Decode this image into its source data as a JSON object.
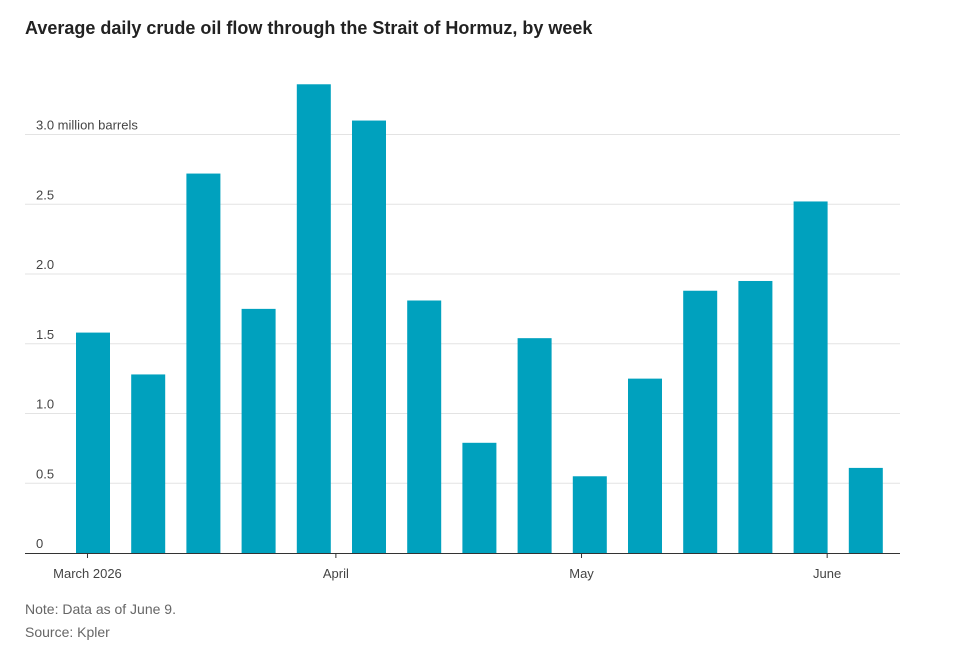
{
  "chart_data": {
    "type": "bar",
    "title": "Average daily crude oil flow through the Strait of Hormuz, by week",
    "unit_label": "million barrels",
    "ylim": [
      0,
      3.4
    ],
    "y_ticks": [
      {
        "value": 0,
        "label": "0"
      },
      {
        "value": 0.5,
        "label": "0.5"
      },
      {
        "value": 1.0,
        "label": "1.0"
      },
      {
        "value": 1.5,
        "label": "1.5"
      },
      {
        "value": 2.0,
        "label": "2.0"
      },
      {
        "value": 2.5,
        "label": "2.5"
      },
      {
        "value": 3.0,
        "label": "3.0 million barrels"
      }
    ],
    "grid": true,
    "values": [
      1.58,
      1.28,
      2.72,
      1.75,
      3.36,
      3.1,
      1.81,
      0.79,
      1.54,
      0.55,
      1.25,
      1.88,
      1.95,
      2.52,
      0.61
    ],
    "x_ticks": [
      {
        "label": "March 2026",
        "bar_position": -0.1
      },
      {
        "label": "April",
        "bar_position": 4.4
      },
      {
        "label": "May",
        "bar_position": 8.85
      },
      {
        "label": "June",
        "bar_position": 13.3
      }
    ],
    "bar_color": "#00a1be",
    "grid_color": "#e3e3e3",
    "axis_color": "#333333"
  },
  "note": "Note: Data as of June 9.",
  "source": "Source: Kpler"
}
